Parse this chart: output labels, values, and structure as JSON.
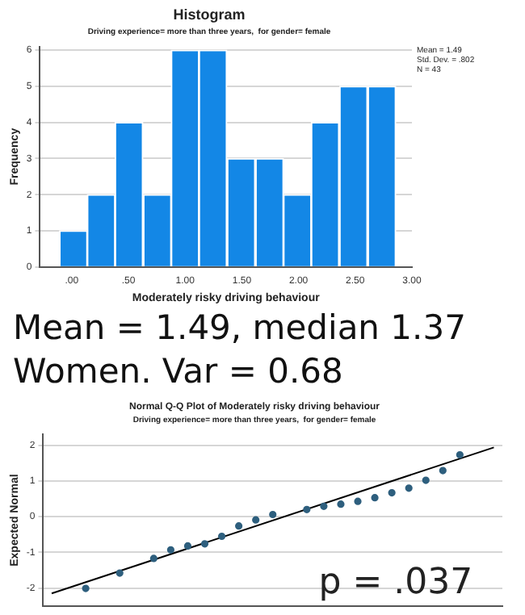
{
  "chart_data": [
    {
      "type": "histogram",
      "title": "Histogram",
      "subtitle": "Driving experience= more than three years,  for gender= female",
      "xlabel": "Moderately risky driving behaviour",
      "ylabel": "Frequency",
      "bins": [
        -0.11,
        0.14,
        0.38,
        0.63,
        0.88,
        1.12,
        1.37,
        1.62,
        1.87,
        2.11,
        2.36,
        2.61,
        2.86
      ],
      "values": [
        1,
        2,
        4,
        2,
        6,
        6,
        3,
        3,
        2,
        4,
        5,
        5
      ],
      "color": "#1387e6",
      "xlim": [
        -0.28,
        3.0
      ],
      "xticks": [
        {
          "value": 0,
          "label": ".00"
        },
        {
          "value": 0.5,
          "label": ".50"
        },
        {
          "value": 1,
          "label": "1.00"
        },
        {
          "value": 1.5,
          "label": "1.50"
        },
        {
          "value": 2,
          "label": "2.00"
        },
        {
          "value": 2.5,
          "label": "2.50"
        },
        {
          "value": 3,
          "label": "3.00"
        }
      ],
      "ylim": [
        0,
        6.1
      ],
      "yticks": [
        0,
        1,
        2,
        3,
        4,
        5,
        6
      ],
      "grid": "y",
      "annotations": [
        "Mean = 1.49",
        "Std. Dev. = .802",
        "N = 43"
      ]
    },
    {
      "type": "scatter",
      "title": "Normal Q-Q Plot of Moderately risky driving behaviour",
      "subtitle": "Driving experience= more than three years,  for gender= female",
      "ylabel": "Expected Normal",
      "series": [
        {
          "type": "scatter",
          "color": "#2e5f7e",
          "marker": "circle",
          "values": [
            null,
            null,
            -2.01,
            null,
            -1.58,
            null,
            -1.17,
            -0.93,
            -0.82,
            -0.76,
            -0.55,
            -0.26,
            -0.09,
            0.06,
            null,
            0.2,
            0.29,
            0.35,
            0.43,
            0.53,
            0.67,
            0.8,
            1.02,
            1.29,
            1.73,
            null,
            null
          ]
        },
        {
          "type": "line",
          "color": "#000000",
          "marker": "none",
          "values": [
            -2.15,
            null,
            null,
            null,
            null,
            null,
            null,
            null,
            null,
            null,
            null,
            null,
            null,
            null,
            null,
            null,
            null,
            null,
            null,
            null,
            null,
            null,
            null,
            null,
            null,
            null,
            1.94
          ]
        }
      ],
      "categories": [
        null,
        null,
        null,
        null,
        null,
        null,
        null,
        null,
        null,
        null,
        null,
        null,
        null,
        null,
        null,
        null,
        null,
        null,
        null,
        null,
        null,
        null,
        null,
        null,
        null,
        null,
        null
      ],
      "ylim": [
        -2.5,
        2.3
      ],
      "yticks": [
        -2,
        -1,
        0,
        1,
        2
      ],
      "grid": "y",
      "tick_labels": "y",
      "annotations": [
        "Mean = 1.49, median 1.37",
        "Women. Var = 0.68",
        "p = .037"
      ]
    }
  ]
}
